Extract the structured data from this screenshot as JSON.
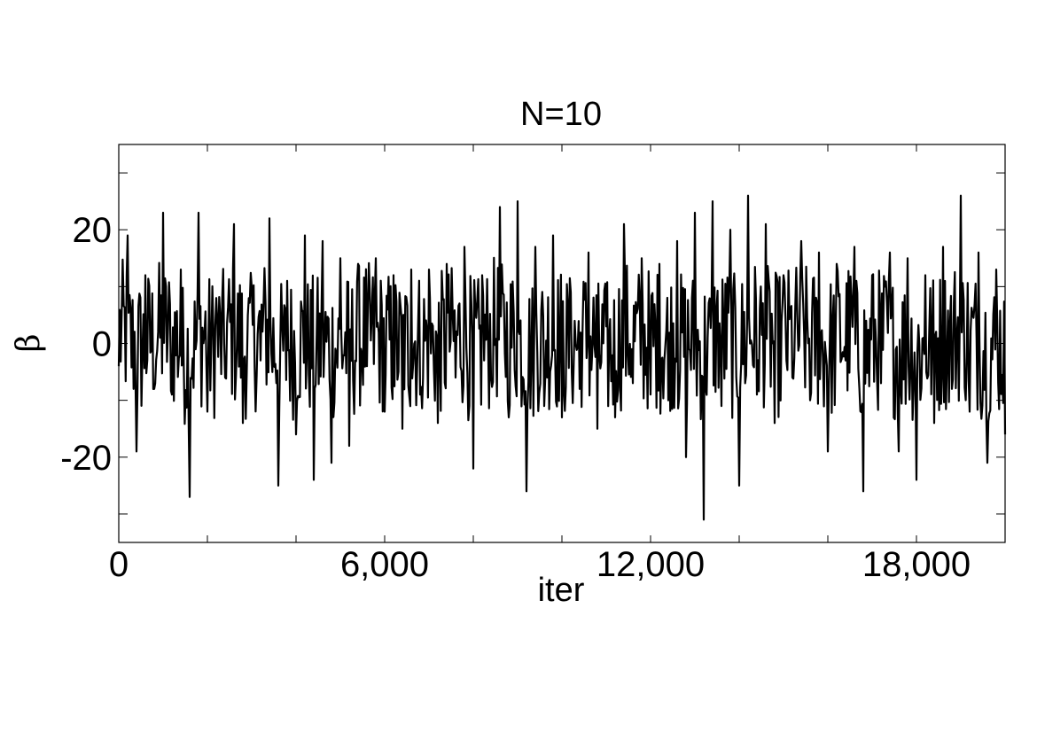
{
  "chart_data": {
    "type": "line",
    "title": "N=10",
    "xlabel": "iter",
    "ylabel": "β",
    "xlim": [
      0,
      20000
    ],
    "ylim": [
      -35,
      35
    ],
    "xticks": [
      0,
      6000,
      12000,
      18000
    ],
    "xtick_labels": [
      "0",
      "6,000",
      "12,000",
      "18,000"
    ],
    "xminor_ticks": [
      2000,
      4000,
      8000,
      10000,
      14000,
      16000
    ],
    "yticks": [
      -30,
      -20,
      -10,
      0,
      10,
      20,
      30
    ],
    "ytick_labels": [
      "-20",
      "0",
      "20"
    ],
    "ytick_label_values": [
      -20,
      0,
      20
    ],
    "grid": false,
    "legend": "none",
    "series": [
      {
        "color": "#000000",
        "x": [
          0,
          200,
          400,
          600,
          800,
          1000,
          1200,
          1400,
          1600,
          1800,
          2000,
          2200,
          2400,
          2600,
          2800,
          3000,
          3200,
          3400,
          3600,
          3800,
          4000,
          4200,
          4400,
          4600,
          4800,
          5000,
          5200,
          5400,
          5600,
          5800,
          6000,
          6200,
          6400,
          6600,
          6800,
          7000,
          7200,
          7400,
          7600,
          7800,
          8000,
          8200,
          8400,
          8600,
          8800,
          9000,
          9200,
          9400,
          9600,
          9800,
          10000,
          10200,
          10400,
          10600,
          10800,
          11000,
          11200,
          11400,
          11600,
          11800,
          12000,
          12200,
          12400,
          12600,
          12800,
          13000,
          13200,
          13400,
          13600,
          13800,
          14000,
          14200,
          14400,
          14600,
          14800,
          15000,
          15200,
          15400,
          15600,
          15800,
          16000,
          16200,
          16400,
          16600,
          16800,
          17000,
          17200,
          17400,
          17600,
          17800,
          18000,
          18200,
          18400,
          18600,
          18800,
          19000,
          19200,
          19400,
          19600,
          19800,
          20000
        ],
        "values": [
          -4,
          19,
          -19,
          12,
          -8,
          23,
          -9,
          13,
          -27,
          23,
          -12,
          8,
          -6,
          21,
          -14,
          10,
          -3,
          22,
          -25,
          11,
          -16,
          19,
          -24,
          18,
          -21,
          15,
          -18,
          14,
          -4,
          15,
          -12,
          12,
          -15,
          13,
          -9,
          13,
          -14,
          14,
          -6,
          17,
          -22,
          12,
          -6,
          24,
          -13,
          25,
          -26,
          17,
          -11,
          19,
          -13,
          9,
          -8,
          16,
          -15,
          3,
          -13,
          21,
          -7,
          15,
          -9,
          14,
          -10,
          18,
          -20,
          23,
          -31,
          25,
          -11,
          20,
          -25,
          26,
          -9,
          21,
          -14,
          12,
          -6,
          18,
          -10,
          16,
          -19,
          14,
          -3,
          17,
          -26,
          12,
          -7,
          16,
          -19,
          15,
          -24,
          12,
          -14,
          17,
          -8,
          26,
          -12,
          16,
          -21,
          13,
          -16
        ]
      }
    ]
  }
}
